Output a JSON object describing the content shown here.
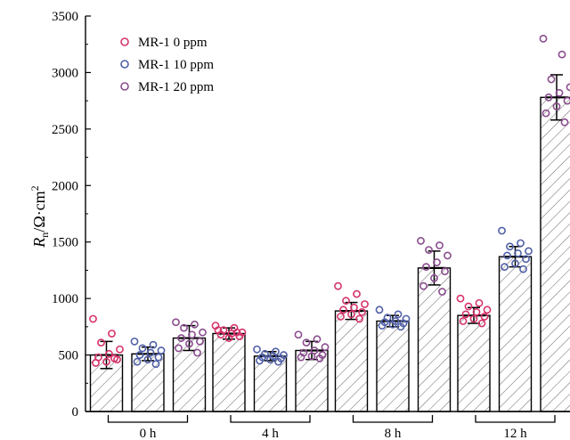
{
  "chart_data": {
    "type": "bar",
    "ylabel_main": "R",
    "ylabel_sub": "n",
    "ylabel_rest": "/Ω·cm",
    "ylabel_sup": "2",
    "xlabel": "",
    "ylim": [
      0,
      3500
    ],
    "yticks": [
      0,
      500,
      1000,
      1500,
      2000,
      2500,
      3000,
      3500
    ],
    "grid": false,
    "legend_position": "top-left",
    "bar_fill": "hatched",
    "categories": [
      "0 h",
      "4 h",
      "8 h",
      "12 h"
    ],
    "series": [
      {
        "name": "MR-1 0 ppm",
        "color": "#d6336c",
        "values": [
          500,
          690,
          890,
          850
        ],
        "errors": [
          120,
          50,
          75,
          70
        ],
        "points": [
          [
            820,
            690,
            610,
            550,
            510,
            480,
            460,
            440,
            430,
            470
          ],
          [
            760,
            740,
            720,
            700,
            690,
            680,
            665,
            650,
            720,
            700
          ],
          [
            1110,
            1040,
            980,
            950,
            920,
            900,
            880,
            860,
            840,
            820
          ],
          [
            1000,
            960,
            930,
            900,
            880,
            860,
            840,
            820,
            800,
            780
          ]
        ]
      },
      {
        "name": "MR-1 10 ppm",
        "color": "#5060a8",
        "values": [
          510,
          490,
          800,
          1370
        ],
        "errors": [
          60,
          40,
          50,
          90
        ],
        "points": [
          [
            620,
            590,
            560,
            540,
            520,
            500,
            480,
            460,
            440,
            420
          ],
          [
            550,
            530,
            510,
            500,
            490,
            480,
            470,
            460,
            450,
            440
          ],
          [
            900,
            860,
            830,
            820,
            800,
            790,
            780,
            770,
            760,
            750
          ],
          [
            1600,
            1490,
            1460,
            1420,
            1400,
            1380,
            1350,
            1310,
            1280,
            1260
          ]
        ]
      },
      {
        "name": "MR-1 20 ppm",
        "color": "#8a4d8e",
        "values": [
          650,
          540,
          1270,
          2780
        ],
        "errors": [
          110,
          80,
          150,
          200
        ],
        "points": [
          [
            790,
            770,
            740,
            700,
            680,
            650,
            620,
            600,
            560,
            520
          ],
          [
            680,
            640,
            610,
            570,
            540,
            520,
            500,
            490,
            480,
            470
          ],
          [
            1510,
            1470,
            1430,
            1380,
            1320,
            1280,
            1240,
            1180,
            1110,
            1060
          ],
          [
            3300,
            3160,
            2940,
            2870,
            2820,
            2780,
            2750,
            2700,
            2640,
            2560
          ]
        ]
      }
    ]
  }
}
